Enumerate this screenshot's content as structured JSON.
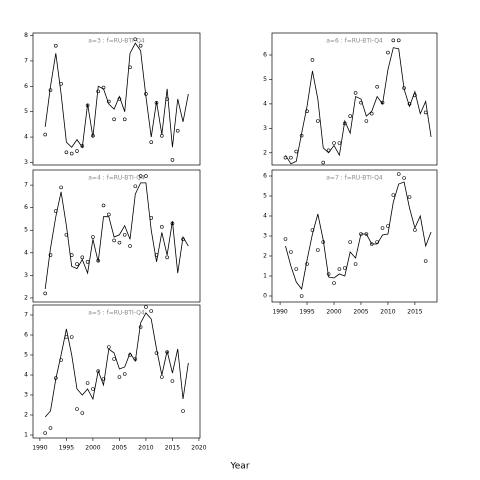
{
  "chart_data": [
    {
      "type": "line",
      "title": "a=3 : f=RU-BTI-Q4",
      "x": [
        1991,
        1992,
        1993,
        1994,
        1995,
        1996,
        1997,
        1998,
        1999,
        2000,
        2001,
        2002,
        2003,
        2004,
        2005,
        2006,
        2007,
        2008,
        2009,
        2010,
        2011,
        2012,
        2013,
        2014,
        2015,
        2016,
        2017,
        2018
      ],
      "series": [
        {
          "style": "points",
          "color": "#000000",
          "values": [
            4.1,
            5.85,
            7.6,
            6.1,
            3.4,
            3.35,
            3.45,
            3.65,
            5.25,
            4.05,
            5.8,
            5.95,
            5.4,
            4.7,
            5.5,
            4.7,
            6.75,
            7.85,
            7.6,
            5.7,
            3.8,
            5.35,
            4.05,
            5.5,
            3.1,
            4.25,
            null,
            null
          ]
        },
        {
          "style": "line",
          "color": "#000000",
          "values": [
            4.4,
            6.0,
            7.3,
            5.7,
            3.8,
            3.6,
            3.9,
            3.6,
            5.3,
            4.0,
            6.0,
            5.9,
            5.3,
            5.1,
            5.6,
            5.0,
            7.3,
            7.7,
            7.4,
            5.6,
            4.0,
            5.4,
            4.1,
            5.9,
            3.6,
            5.5,
            4.6,
            5.7
          ]
        }
      ],
      "xlim": [
        1988.7,
        2020.2
      ],
      "ylim": [
        2.9,
        8.1
      ],
      "yticks": [
        3,
        4,
        5,
        6,
        7,
        8
      ]
    },
    {
      "type": "line",
      "title": "a=4 : f=RU-BTI-Q4",
      "x": [
        1991,
        1992,
        1993,
        1994,
        1995,
        1996,
        1997,
        1998,
        1999,
        2000,
        2001,
        2002,
        2003,
        2004,
        2005,
        2006,
        2007,
        2008,
        2009,
        2010,
        2011,
        2012,
        2013,
        2014,
        2015,
        2016,
        2017,
        2018
      ],
      "series": [
        {
          "style": "points",
          "color": "#000000",
          "values": [
            2.2,
            3.9,
            5.85,
            6.9,
            4.8,
            3.9,
            3.5,
            3.8,
            3.6,
            4.7,
            3.65,
            6.1,
            5.7,
            4.55,
            4.45,
            4.8,
            4.3,
            6.95,
            7.4,
            7.4,
            5.55,
            3.9,
            5.15,
            3.8,
            5.3,
            null,
            4.6,
            null
          ]
        },
        {
          "style": "line",
          "color": "#000000",
          "values": [
            2.4,
            4.2,
            5.6,
            6.7,
            5.2,
            3.4,
            3.3,
            3.7,
            3.1,
            4.6,
            3.6,
            5.6,
            5.6,
            4.7,
            4.8,
            5.2,
            4.6,
            6.6,
            7.1,
            7.1,
            5.0,
            3.6,
            4.9,
            3.9,
            5.4,
            3.1,
            4.7,
            4.3
          ]
        }
      ],
      "xlim": [
        1988.7,
        2020.2
      ],
      "ylim": [
        1.82,
        7.67
      ],
      "yticks": [
        2,
        3,
        4,
        5,
        6,
        7
      ]
    },
    {
      "type": "line",
      "title": "a=5 : f=RU-BTI-Q4",
      "x": [
        1991,
        1992,
        1993,
        1994,
        1995,
        1996,
        1997,
        1998,
        1999,
        2000,
        2001,
        2002,
        2003,
        2004,
        2005,
        2006,
        2007,
        2008,
        2009,
        2010,
        2011,
        2012,
        2013,
        2014,
        2015,
        2016,
        2017,
        2018
      ],
      "series": [
        {
          "style": "points",
          "color": "#000000",
          "values": [
            1.1,
            1.35,
            3.85,
            4.75,
            5.9,
            5.9,
            2.3,
            2.1,
            3.6,
            3.3,
            4.2,
            3.8,
            5.4,
            4.8,
            3.9,
            4.05,
            5.0,
            4.8,
            6.4,
            7.4,
            7.2,
            5.1,
            3.9,
            5.15,
            3.7,
            null,
            2.2,
            null
          ]
        },
        {
          "style": "line",
          "color": "#000000",
          "values": [
            1.9,
            2.2,
            3.8,
            5.0,
            6.3,
            5.0,
            3.3,
            3.0,
            3.3,
            2.8,
            4.2,
            3.5,
            5.3,
            5.1,
            4.3,
            4.4,
            5.1,
            4.7,
            6.6,
            7.1,
            6.8,
            5.3,
            4.0,
            5.2,
            4.1,
            5.3,
            2.8,
            4.6
          ]
        }
      ],
      "xlim": [
        1988.7,
        2020.2
      ],
      "ylim": [
        0.85,
        7.5
      ],
      "yticks": [
        1,
        2,
        3,
        4,
        5,
        6,
        7
      ],
      "xticks": [
        1990,
        1995,
        2000,
        2005,
        2010,
        2015,
        2020
      ]
    },
    {
      "type": "line",
      "title": "a=6 : f=RU-BTI-Q4",
      "x": [
        1991,
        1992,
        1993,
        1994,
        1995,
        1996,
        1997,
        1998,
        1999,
        2000,
        2001,
        2002,
        2003,
        2004,
        2005,
        2006,
        2007,
        2008,
        2009,
        2010,
        2011,
        2012,
        2013,
        2014,
        2015,
        2016,
        2017,
        2018
      ],
      "series": [
        {
          "style": "points",
          "color": "#000000",
          "values": [
            1.8,
            1.8,
            2.05,
            2.7,
            3.7,
            5.8,
            3.3,
            1.6,
            2.1,
            2.4,
            2.4,
            3.2,
            3.5,
            4.45,
            4.05,
            3.3,
            3.6,
            4.7,
            4.05,
            6.1,
            6.6,
            6.6,
            4.65,
            4.0,
            4.35,
            null,
            3.65,
            null
          ]
        },
        {
          "style": "line",
          "color": "#000000",
          "values": [
            1.9,
            1.55,
            1.65,
            2.8,
            3.9,
            5.35,
            4.2,
            2.2,
            2.0,
            2.3,
            1.9,
            3.3,
            2.8,
            4.3,
            4.2,
            3.5,
            3.7,
            4.3,
            4.0,
            5.4,
            6.3,
            6.25,
            4.6,
            3.9,
            4.5,
            3.6,
            4.1,
            2.65
          ]
        }
      ],
      "xlim": [
        1988.5,
        2019.1
      ],
      "ylim": [
        1.5,
        6.9
      ],
      "yticks": [
        2,
        3,
        4,
        5,
        6
      ]
    },
    {
      "type": "line",
      "title": "a=7 : f=RU-BTI-Q4",
      "x": [
        1991,
        1992,
        1993,
        1994,
        1995,
        1996,
        1997,
        1998,
        1999,
        2000,
        2001,
        2002,
        2003,
        2004,
        2005,
        2006,
        2007,
        2008,
        2009,
        2010,
        2011,
        2012,
        2013,
        2014,
        2015,
        2016,
        2017,
        2018
      ],
      "series": [
        {
          "style": "points",
          "color": "#000000",
          "values": [
            2.85,
            2.2,
            1.35,
            0.0,
            1.6,
            3.3,
            2.3,
            2.7,
            1.1,
            0.65,
            1.35,
            1.4,
            2.7,
            1.6,
            3.1,
            3.1,
            2.6,
            2.7,
            3.4,
            3.5,
            5.05,
            6.1,
            5.9,
            4.95,
            3.3,
            null,
            1.75,
            null
          ]
        },
        {
          "style": "line",
          "color": "#000000",
          "values": [
            2.5,
            1.5,
            0.7,
            0.35,
            1.8,
            3.1,
            4.1,
            2.8,
            0.95,
            0.9,
            1.1,
            1.0,
            2.2,
            1.9,
            3.1,
            3.1,
            2.6,
            2.6,
            3.05,
            3.1,
            4.7,
            5.6,
            5.7,
            4.4,
            3.4,
            4.0,
            2.5,
            3.2
          ]
        }
      ],
      "xlim": [
        1988.5,
        2019.1
      ],
      "ylim": [
        -0.3,
        6.3
      ],
      "yticks": [
        0,
        1,
        2,
        3,
        4,
        5,
        6
      ],
      "xticks": [
        1990,
        1995,
        2000,
        2005,
        2010,
        2015
      ]
    }
  ],
  "xlabel": "Year"
}
